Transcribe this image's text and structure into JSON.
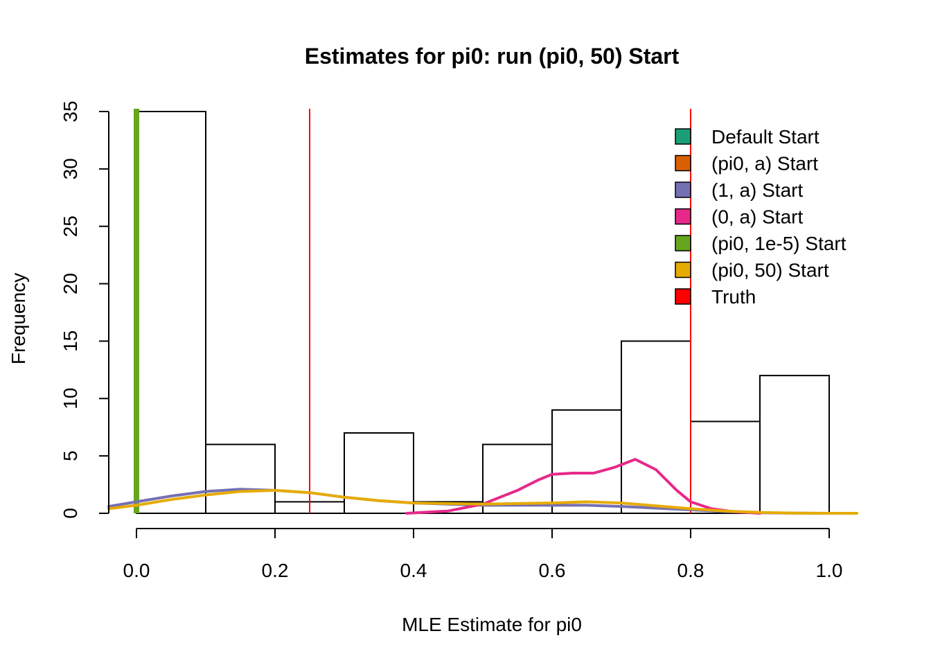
{
  "chart_data": {
    "type": "histogram",
    "title": "Estimates for pi0: run (pi0, 50) Start",
    "xlabel": "MLE Estimate for pi0",
    "ylabel": "Frequency",
    "xlim": [
      -0.04,
      1.04
    ],
    "ylim": [
      0,
      35
    ],
    "x_ticks": [
      0.0,
      0.2,
      0.4,
      0.6,
      0.8,
      1.0
    ],
    "x_tick_labels": [
      "0.0",
      "0.2",
      "0.4",
      "0.6",
      "0.8",
      "1.0"
    ],
    "y_ticks": [
      0,
      5,
      10,
      15,
      20,
      25,
      30,
      35
    ],
    "y_tick_labels": [
      "0",
      "5",
      "10",
      "15",
      "20",
      "25",
      "30",
      "35"
    ],
    "bins": [
      {
        "x0": 0.0,
        "x1": 0.1,
        "count": 35
      },
      {
        "x0": 0.1,
        "x1": 0.2,
        "count": 6
      },
      {
        "x0": 0.2,
        "x1": 0.3,
        "count": 1
      },
      {
        "x0": 0.3,
        "x1": 0.4,
        "count": 7
      },
      {
        "x0": 0.4,
        "x1": 0.5,
        "count": 1
      },
      {
        "x0": 0.5,
        "x1": 0.6,
        "count": 6
      },
      {
        "x0": 0.6,
        "x1": 0.7,
        "count": 9
      },
      {
        "x0": 0.7,
        "x1": 0.8,
        "count": 15
      },
      {
        "x0": 0.8,
        "x1": 0.9,
        "count": 8
      },
      {
        "x0": 0.9,
        "x1": 1.0,
        "count": 12
      }
    ],
    "vertical_lines": [
      {
        "name": "Truth",
        "x": 0.25,
        "color": "#FF0000"
      },
      {
        "name": "Truth",
        "x": 0.8,
        "color": "#FF0000"
      },
      {
        "name": "(pi0, 1e-5) Start",
        "x": 0.0,
        "color": "#66A61E"
      }
    ],
    "density_curves": [
      {
        "name": "(1, a) Start",
        "color": "#7570B3",
        "points": [
          [
            -0.04,
            0.6
          ],
          [
            0.0,
            1.0
          ],
          [
            0.05,
            1.5
          ],
          [
            0.1,
            1.9
          ],
          [
            0.15,
            2.1
          ],
          [
            0.2,
            2.0
          ],
          [
            0.25,
            1.8
          ],
          [
            0.3,
            1.4
          ],
          [
            0.35,
            1.1
          ],
          [
            0.4,
            0.9
          ],
          [
            0.45,
            0.8
          ],
          [
            0.5,
            0.7
          ],
          [
            0.55,
            0.7
          ],
          [
            0.6,
            0.7
          ],
          [
            0.65,
            0.7
          ],
          [
            0.7,
            0.6
          ],
          [
            0.75,
            0.45
          ],
          [
            0.8,
            0.3
          ],
          [
            0.85,
            0.15
          ],
          [
            0.9,
            0.05
          ],
          [
            0.95,
            0.01
          ],
          [
            1.0,
            0.0
          ],
          [
            1.04,
            0.0
          ]
        ]
      },
      {
        "name": "(0, a) Start",
        "color": "#E7298A",
        "points": [
          [
            0.39,
            0.0
          ],
          [
            0.45,
            0.2
          ],
          [
            0.5,
            0.8
          ],
          [
            0.55,
            2.0
          ],
          [
            0.58,
            2.9
          ],
          [
            0.6,
            3.4
          ],
          [
            0.63,
            3.5
          ],
          [
            0.66,
            3.5
          ],
          [
            0.69,
            4.0
          ],
          [
            0.72,
            4.7
          ],
          [
            0.75,
            3.8
          ],
          [
            0.78,
            2.0
          ],
          [
            0.8,
            1.0
          ],
          [
            0.83,
            0.4
          ],
          [
            0.86,
            0.15
          ],
          [
            0.9,
            0.0
          ]
        ]
      },
      {
        "name": "(pi0, 50) Start",
        "color": "#E6AB02",
        "points": [
          [
            -0.04,
            0.4
          ],
          [
            0.0,
            0.7
          ],
          [
            0.05,
            1.2
          ],
          [
            0.1,
            1.6
          ],
          [
            0.15,
            1.9
          ],
          [
            0.2,
            2.0
          ],
          [
            0.25,
            1.8
          ],
          [
            0.3,
            1.4
          ],
          [
            0.35,
            1.1
          ],
          [
            0.4,
            0.9
          ],
          [
            0.45,
            0.85
          ],
          [
            0.5,
            0.8
          ],
          [
            0.55,
            0.85
          ],
          [
            0.6,
            0.9
          ],
          [
            0.65,
            1.0
          ],
          [
            0.7,
            0.9
          ],
          [
            0.75,
            0.65
          ],
          [
            0.8,
            0.4
          ],
          [
            0.85,
            0.2
          ],
          [
            0.9,
            0.08
          ],
          [
            0.95,
            0.02
          ],
          [
            1.0,
            0.0
          ],
          [
            1.04,
            0.0
          ]
        ]
      }
    ],
    "legend": {
      "position": "top-right",
      "items": [
        {
          "label": "Default Start",
          "color": "#1B9E77"
        },
        {
          "label": "(pi0, a) Start",
          "color": "#D95F02"
        },
        {
          "label": "(1, a) Start",
          "color": "#7570B3"
        },
        {
          "label": "(0, a) Start",
          "color": "#E7298A"
        },
        {
          "label": "(pi0, 1e-5) Start",
          "color": "#66A61E"
        },
        {
          "label": "(pi0, 50) Start",
          "color": "#E6AB02"
        },
        {
          "label": "Truth",
          "color": "#FF0000"
        }
      ]
    }
  }
}
